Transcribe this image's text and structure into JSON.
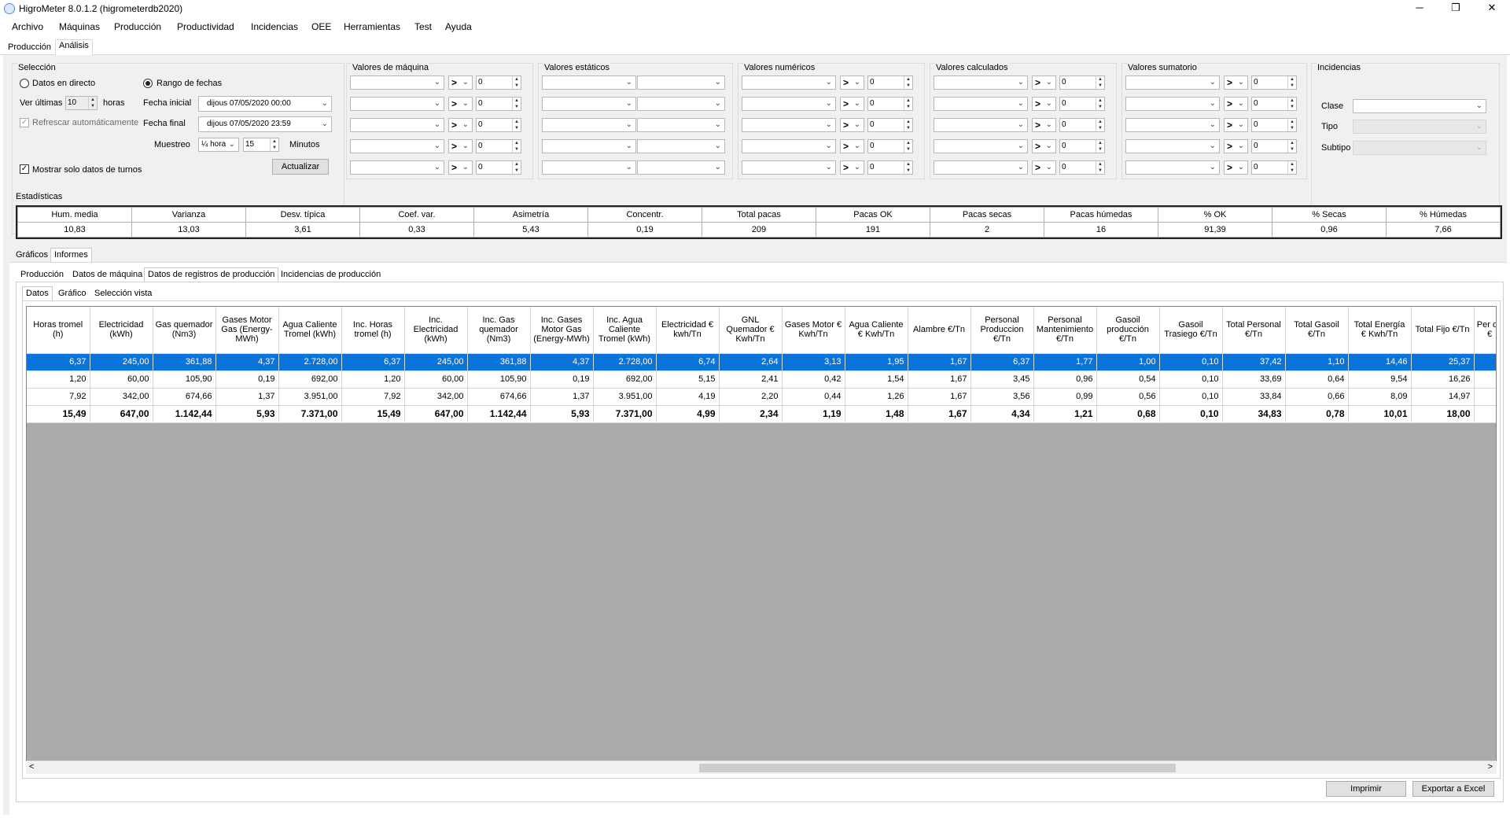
{
  "window": {
    "title": "HigroMeter 8.0.1.2 (higrometerdb2020)",
    "min": "─",
    "restore": "❐",
    "close": "✕"
  },
  "menu": [
    "Archivo",
    "Máquinas",
    "Producción",
    "Productividad",
    "Incidencias",
    "OEE",
    "Herramientas",
    "Test",
    "Ayuda"
  ],
  "outer_tabs": [
    "Producción",
    "Análisis"
  ],
  "seleccion": {
    "title": "Selección",
    "directo": "Datos en directo",
    "rango": "Rango de fechas",
    "ver_ultimas": "Ver últimas",
    "ver_val": "10",
    "horas": "horas",
    "fecha_inicial": "Fecha inicial",
    "fecha_inicial_val": "dijous    07/05/2020 00:00",
    "refrescar": "Refrescar automáticamente",
    "fecha_final": "Fecha final",
    "fecha_final_val": "dijous    07/05/2020 23:59",
    "muestreo": "Muestreo",
    "muestreo_val": "¼ hora",
    "minutos_val": "15",
    "minutos": "Minutos",
    "actualizar": "Actualizar",
    "mostrar_turnos": "Mostrar solo datos de turnos",
    "check_mark": "✓"
  },
  "filter_groups": [
    {
      "title": "Valores de máquina"
    },
    {
      "title": "Valores estáticos"
    },
    {
      "title": "Valores numéricos"
    },
    {
      "title": "Valores calculados"
    },
    {
      "title": "Valores sumatorio"
    }
  ],
  "filter_op": ">",
  "filter_num": "0",
  "incidencias": {
    "title": "Incidencias",
    "clase": "Clase",
    "tipo": "Tipo",
    "subtipo": "Subtipo"
  },
  "estadisticas": {
    "title": "Estadísticas",
    "headers": [
      "Hum. media",
      "Varianza",
      "Desv. típica",
      "Coef. var.",
      "Asimetría",
      "Concentr.",
      "Total pacas",
      "Pacas OK",
      "Pacas secas",
      "Pacas húmedas",
      "% OK",
      "% Secas",
      "% Húmedas"
    ],
    "values": [
      "10,83",
      "13,03",
      "3,61",
      "0,33",
      "5,43",
      "0,19",
      "209",
      "191",
      "2",
      "16",
      "91,39",
      "0,96",
      "7,66"
    ]
  },
  "mid_tabs": [
    "Gráficos",
    "Informes"
  ],
  "report_tabs": [
    "Producción",
    "Datos de máquina",
    "Datos de registros de producción",
    "Incidencias de producción"
  ],
  "sub_tabs": [
    "Datos",
    "Gráfico",
    "Selección vista"
  ],
  "grid": {
    "columns": [
      "Horas tromel (h)",
      "Electricidad (kWh)",
      "Gas quemador (Nm3)",
      "Gases Motor Gas (Energy-MWh)",
      "Agua Caliente Tromel (kWh)",
      "Inc. Horas tromel (h)",
      "Inc. Electricidad (kWh)",
      "Inc. Gas quemador (Nm3)",
      "Inc. Gases Motor Gas (Energy-MWh)",
      "Inc. Agua Caliente Tromel (kWh)",
      "Electricidad € kwh/Tn",
      "GNL Quemador € Kwh/Tn",
      "Gases Motor € Kwh/Tn",
      "Agua Caliente € Kwh/Tn",
      "Alambre €/Tn",
      "Personal Produccion €/Tn",
      "Personal Mantenimiento €/Tn",
      "Gasoil producción €/Tn",
      "Gasoil Trasiego €/Tn",
      "Total Personal €/Tn",
      "Total Gasoil €/Tn",
      "Total Energía € Kwh/Tn",
      "Total Fijo €/Tn",
      "Per de €"
    ],
    "rows": [
      [
        "6,37",
        "245,00",
        "361,88",
        "4,37",
        "2.728,00",
        "6,37",
        "245,00",
        "361,88",
        "4,37",
        "2.728,00",
        "6,74",
        "2,64",
        "3,13",
        "1,95",
        "1,67",
        "6,37",
        "1,77",
        "1,00",
        "0,10",
        "37,42",
        "1,10",
        "14,46",
        "25,37",
        ""
      ],
      [
        "1,20",
        "60,00",
        "105,90",
        "0,19",
        "692,00",
        "1,20",
        "60,00",
        "105,90",
        "0,19",
        "692,00",
        "5,15",
        "2,41",
        "0,42",
        "1,54",
        "1,67",
        "3,45",
        "0,96",
        "0,54",
        "0,10",
        "33,69",
        "0,64",
        "9,54",
        "16,26",
        ""
      ],
      [
        "7,92",
        "342,00",
        "674,66",
        "1,37",
        "3.951,00",
        "7,92",
        "342,00",
        "674,66",
        "1,37",
        "3.951,00",
        "4,19",
        "2,20",
        "0,44",
        "1,26",
        "1,67",
        "3,56",
        "0,99",
        "0,56",
        "0,10",
        "33,84",
        "0,66",
        "8,09",
        "14,97",
        ""
      ],
      [
        "15,49",
        "647,00",
        "1.142,44",
        "5,93",
        "7.371,00",
        "15,49",
        "647,00",
        "1.142,44",
        "5,93",
        "7.371,00",
        "4,99",
        "2,34",
        "1,19",
        "1,48",
        "1,67",
        "4,34",
        "1,21",
        "0,68",
        "0,10",
        "34,83",
        "0,78",
        "10,01",
        "18,00",
        ""
      ]
    ]
  },
  "scroll": {
    "left": "<",
    "right": ">"
  },
  "buttons": {
    "imprimir": "Imprimir",
    "exportar": "Exportar a Excel"
  }
}
